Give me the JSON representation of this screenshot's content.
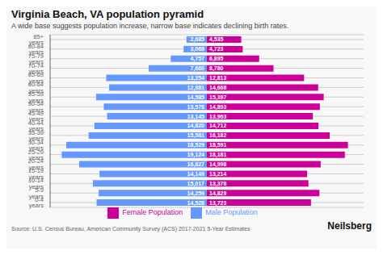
{
  "chart_data": {
    "type": "bar",
    "orientation": "horizontal",
    "title": "Virginia Beach, VA population pyramid",
    "subtitle": "A wide base suggests population increase, narrow base indicates declining birth rates.",
    "annotations": [
      "Source: U.S. Census Bureau, American Community Survey (ACS) 2017-2021 5-Year Estimates",
      "Neilsberg"
    ],
    "categories": [
      "0-4 years",
      "5-9 years",
      "10-14 years",
      "15-19 years",
      "20-24 years",
      "25-29 years",
      "30-34 years",
      "35-39 years",
      "40-44 years",
      "45-49 years",
      "50-54 years",
      "55-59 years",
      "60-64 years",
      "65-69 years",
      "70-74 years",
      "75-79 years",
      "80-84 years",
      "85+ years"
    ],
    "series": [
      {
        "name": "Male Population",
        "color": "#6699ff",
        "values": [
          14528,
          14259,
          15017,
          14149,
          16827,
          19124,
          18529,
          15581,
          14820,
          13145,
          13578,
          14585,
          12881,
          13254,
          7660,
          4757,
          3068,
          2685
        ],
        "value_labels": [
          "14,528",
          "14,259",
          "15,017",
          "14,149",
          "16,827",
          "19,124",
          "18,529",
          "15,581",
          "14,820",
          "13,145",
          "13,578",
          "14,585",
          "12,881",
          "13,254",
          "7,660",
          "4,757",
          "3,068",
          "2,685"
        ]
      },
      {
        "name": "Female Population",
        "color": "#cc0099",
        "values": [
          13723,
          14829,
          13378,
          13214,
          14998,
          18181,
          18591,
          16182,
          14712,
          13963,
          14893,
          15397,
          14668,
          12813,
          8780,
          6895,
          4723,
          4535
        ],
        "value_labels": [
          "13,723",
          "14,829",
          "13,378",
          "13,214",
          "14,998",
          "18,181",
          "18,591",
          "16,182",
          "14,712",
          "13,963",
          "14,893",
          "15,397",
          "14,668",
          "12,813",
          "8,780",
          "6,895",
          "4,723",
          "4,535"
        ]
      }
    ],
    "xlim": [
      -20653.92,
      20653.92
    ],
    "grid": true,
    "legend": "bottom",
    "data_labels": true,
    "tick_labels": "y",
    "color": "#f8f8f8"
  }
}
